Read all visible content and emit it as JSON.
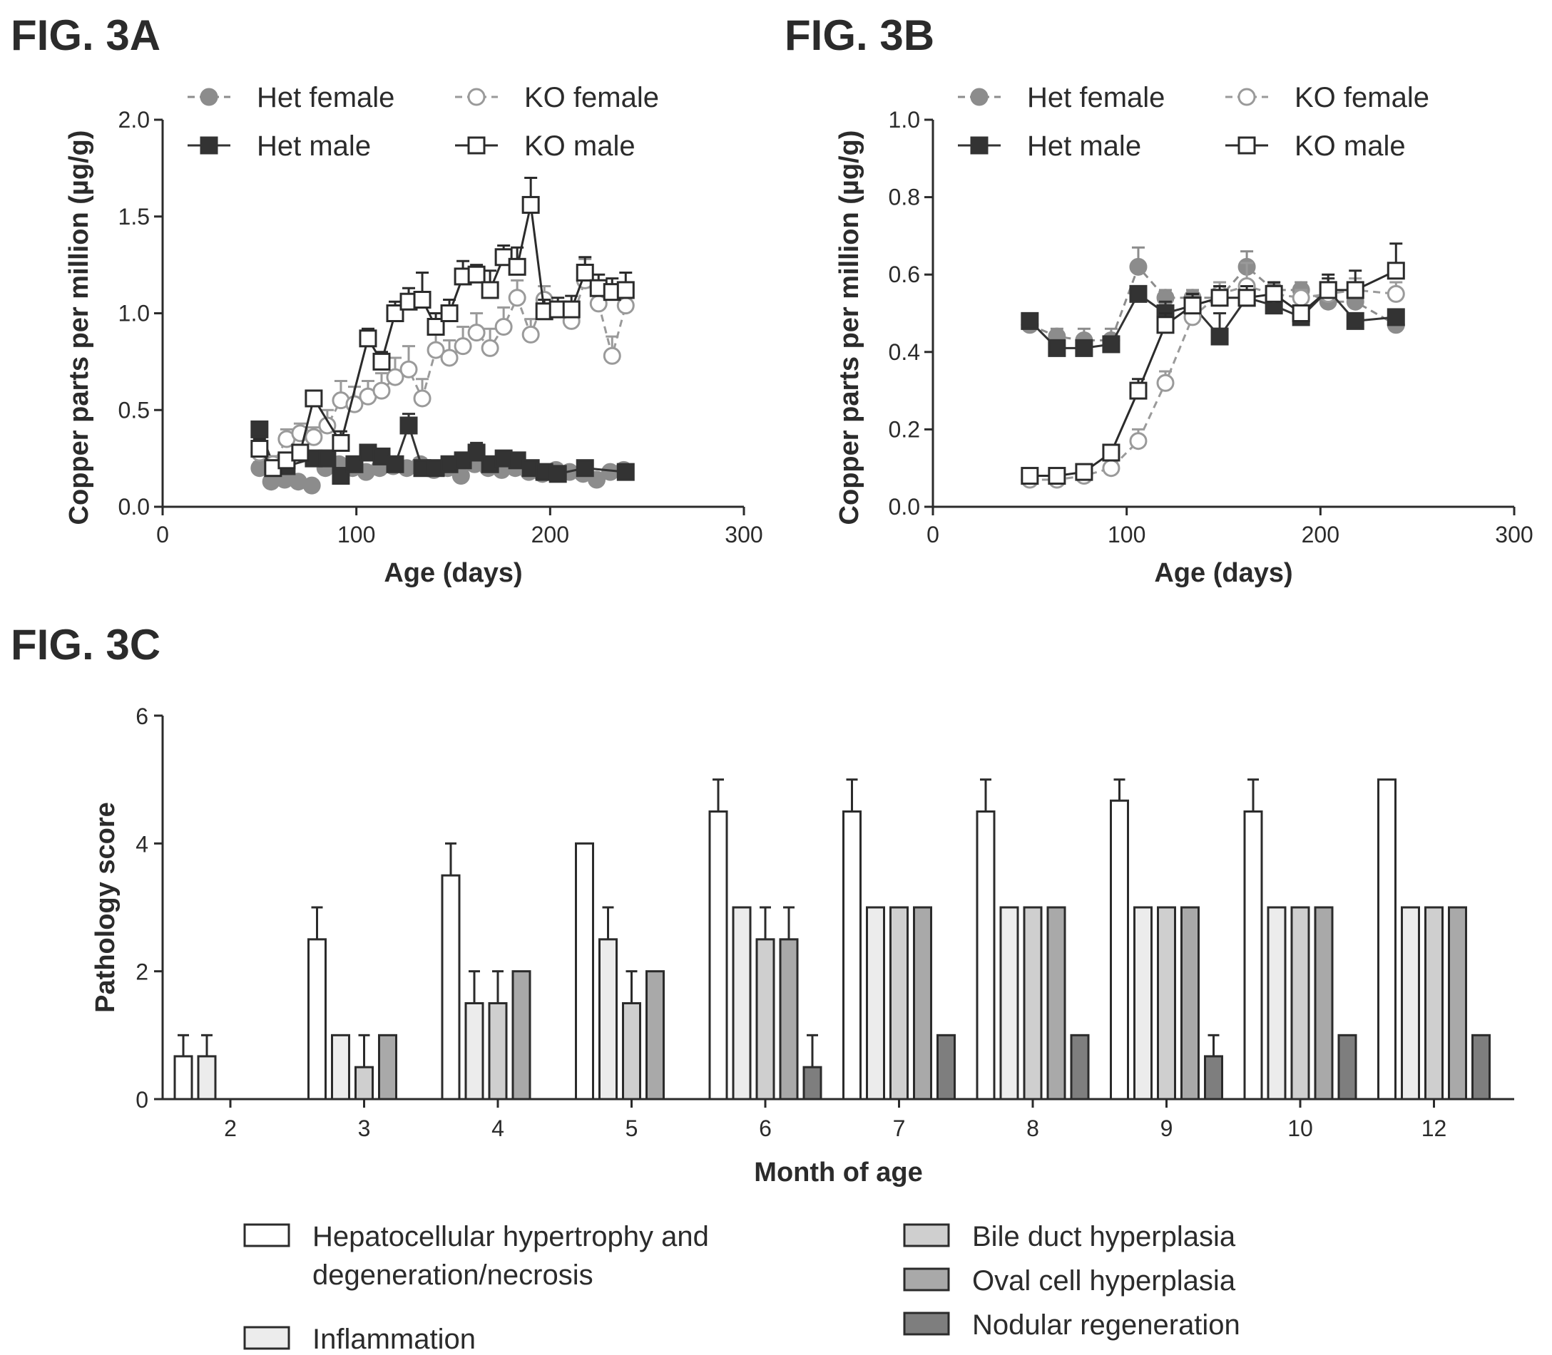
{
  "figures": {
    "a": {
      "title": "FIG. 3A"
    },
    "b": {
      "title": "FIG. 3B"
    },
    "c": {
      "title": "FIG. 3C"
    }
  },
  "colors": {
    "het_female": "#8c8c8c",
    "het_male": "#333333",
    "ko_female": "#9a9a9a",
    "ko_male": "#2b2b2b",
    "hypertrophy_fill": "#ffffff",
    "inflammation_fill": "#ececec",
    "bile_duct_fill": "#cfcfcf",
    "oval_cell_fill": "#a9a9a9",
    "nodular_fill": "#7e7e7e"
  },
  "chart_data": [
    {
      "id": "a",
      "type": "line",
      "title": "FIG. 3A",
      "xlabel": "Age (days)",
      "ylabel": "Copper parts per million (µg/g)",
      "xlim": [
        0,
        300
      ],
      "ylim": [
        0,
        2.0
      ],
      "xticks": [
        "0",
        "100",
        "200",
        "300"
      ],
      "yticks": [
        "0.0",
        "0.5",
        "1.0",
        "1.5",
        "2.0"
      ],
      "legend_position": "top",
      "series": [
        {
          "name": "Het female",
          "x": [
            50,
            56,
            63,
            70,
            77,
            84,
            91,
            98,
            105,
            112,
            119,
            126,
            133,
            140,
            147,
            154,
            161,
            168,
            175,
            182,
            189,
            196,
            203,
            210,
            217,
            224,
            231,
            238
          ],
          "y": [
            0.2,
            0.13,
            0.14,
            0.13,
            0.11,
            0.2,
            0.22,
            0.2,
            0.18,
            0.2,
            0.21,
            0.2,
            0.22,
            0.19,
            0.2,
            0.16,
            0.22,
            0.2,
            0.19,
            0.2,
            0.18,
            0.17,
            0.19,
            0.18,
            0.17,
            0.14,
            0.18,
            0.19
          ],
          "err": [
            0.03,
            0.02,
            0.02,
            0.02,
            0.02,
            0.03,
            0.03,
            0.03,
            0.02,
            0.03,
            0.03,
            0.03,
            0.03,
            0.03,
            0.03,
            0.02,
            0.03,
            0.03,
            0.03,
            0.03,
            0.02,
            0.02,
            0.03,
            0.02,
            0.02,
            0.02,
            0.02,
            0.02
          ]
        },
        {
          "name": "Het male",
          "x": [
            50,
            57,
            64,
            78,
            85,
            92,
            99,
            106,
            113,
            120,
            127,
            134,
            141,
            148,
            155,
            162,
            169,
            176,
            183,
            190,
            197,
            204,
            218,
            239
          ],
          "y": [
            0.4,
            0.22,
            0.21,
            0.25,
            0.25,
            0.16,
            0.22,
            0.28,
            0.26,
            0.22,
            0.42,
            0.2,
            0.2,
            0.22,
            0.24,
            0.28,
            0.22,
            0.25,
            0.24,
            0.2,
            0.18,
            0.17,
            0.2,
            0.18
          ],
          "err": [
            0.04,
            0.03,
            0.03,
            0.04,
            0.04,
            0.03,
            0.03,
            0.04,
            0.03,
            0.03,
            0.06,
            0.03,
            0.03,
            0.03,
            0.03,
            0.05,
            0.03,
            0.03,
            0.03,
            0.03,
            0.02,
            0.02,
            0.02,
            0.02
          ]
        },
        {
          "name": "KO female",
          "x": [
            50,
            57,
            64,
            71,
            78,
            85,
            92,
            99,
            106,
            113,
            120,
            127,
            134,
            141,
            148,
            155,
            162,
            169,
            176,
            183,
            190,
            197,
            211,
            218,
            225,
            232,
            239
          ],
          "y": [
            0.28,
            0.22,
            0.35,
            0.38,
            0.36,
            0.42,
            0.55,
            0.53,
            0.57,
            0.6,
            0.67,
            0.71,
            0.56,
            0.81,
            0.77,
            0.83,
            0.9,
            0.82,
            0.93,
            1.08,
            0.89,
            1.07,
            0.96,
            1.17,
            1.05,
            0.78,
            1.04
          ],
          "err": [
            0.04,
            0.04,
            0.05,
            0.05,
            0.05,
            0.08,
            0.1,
            0.09,
            0.08,
            0.09,
            0.1,
            0.12,
            0.1,
            0.1,
            0.09,
            0.1,
            0.1,
            0.1,
            0.1,
            0.09,
            0.08,
            0.07,
            0.07,
            0.11,
            0.12,
            0.1,
            0.09
          ]
        },
        {
          "name": "KO male",
          "x": [
            50,
            57,
            64,
            71,
            78,
            92,
            106,
            113,
            120,
            127,
            134,
            141,
            148,
            155,
            162,
            169,
            176,
            183,
            190,
            197,
            204,
            211,
            218,
            225,
            232,
            239
          ],
          "y": [
            0.3,
            0.2,
            0.24,
            0.28,
            0.56,
            0.33,
            0.87,
            0.75,
            1.0,
            1.06,
            1.07,
            0.93,
            1.0,
            1.19,
            1.2,
            1.12,
            1.29,
            1.24,
            1.56,
            1.01,
            1.02,
            1.02,
            1.21,
            1.13,
            1.11,
            1.12
          ],
          "err": [
            0.05,
            0.04,
            0.04,
            0.04,
            0.04,
            0.06,
            0.05,
            0.05,
            0.06,
            0.07,
            0.14,
            0.07,
            0.07,
            0.08,
            0.05,
            0.1,
            0.06,
            0.1,
            0.14,
            0.06,
            0.06,
            0.07,
            0.08,
            0.07,
            0.07,
            0.09
          ]
        }
      ]
    },
    {
      "id": "b",
      "type": "line",
      "title": "FIG. 3B",
      "xlabel": "Age (days)",
      "ylabel": "Copper parts per million (µg/g)",
      "xlim": [
        0,
        300
      ],
      "ylim": [
        0,
        1.0
      ],
      "xticks": [
        "0",
        "100",
        "200",
        "300"
      ],
      "yticks": [
        "0.0",
        "0.2",
        "0.4",
        "0.6",
        "0.8",
        "1.0"
      ],
      "legend_position": "top",
      "series": [
        {
          "name": "Het female",
          "x": [
            50,
            64,
            78,
            92,
            106,
            120,
            134,
            148,
            162,
            176,
            190,
            204,
            218,
            239
          ],
          "y": [
            0.47,
            0.44,
            0.43,
            0.43,
            0.62,
            0.54,
            0.54,
            0.54,
            0.62,
            0.56,
            0.56,
            0.53,
            0.53,
            0.47
          ],
          "err": [
            0.02,
            0.02,
            0.03,
            0.03,
            0.05,
            0.02,
            0.02,
            0.02,
            0.04,
            0.02,
            0.02,
            0.02,
            0.02,
            0.02
          ]
        },
        {
          "name": "Het male",
          "x": [
            50,
            64,
            78,
            92,
            106,
            120,
            134,
            148,
            162,
            176,
            190,
            204,
            218,
            239
          ],
          "y": [
            0.48,
            0.41,
            0.41,
            0.42,
            0.55,
            0.5,
            0.52,
            0.44,
            0.54,
            0.52,
            0.49,
            0.56,
            0.48,
            0.49
          ],
          "err": [
            0.02,
            0.02,
            0.02,
            0.02,
            0.02,
            0.03,
            0.03,
            0.06,
            0.03,
            0.02,
            0.02,
            0.03,
            0.02,
            0.02
          ]
        },
        {
          "name": "KO female",
          "x": [
            50,
            64,
            78,
            92,
            106,
            120,
            134,
            148,
            162,
            176,
            190,
            204,
            218,
            239
          ],
          "y": [
            0.07,
            0.07,
            0.08,
            0.1,
            0.17,
            0.32,
            0.49,
            0.55,
            0.57,
            0.55,
            0.54,
            0.55,
            0.56,
            0.55
          ],
          "err": [
            0.01,
            0.01,
            0.01,
            0.01,
            0.03,
            0.03,
            0.03,
            0.03,
            0.06,
            0.02,
            0.02,
            0.02,
            0.03,
            0.03
          ]
        },
        {
          "name": "KO male",
          "x": [
            50,
            64,
            78,
            92,
            106,
            120,
            134,
            148,
            162,
            176,
            190,
            204,
            218,
            239
          ],
          "y": [
            0.08,
            0.08,
            0.09,
            0.14,
            0.3,
            0.47,
            0.52,
            0.54,
            0.54,
            0.55,
            0.5,
            0.56,
            0.56,
            0.61
          ],
          "err": [
            0.01,
            0.01,
            0.01,
            0.02,
            0.03,
            0.03,
            0.03,
            0.03,
            0.03,
            0.03,
            0.02,
            0.04,
            0.05,
            0.07
          ]
        }
      ]
    },
    {
      "id": "c",
      "type": "bar",
      "title": "FIG. 3C",
      "xlabel": "Month of age",
      "ylabel": "Pathology score",
      "ylim": [
        0,
        6
      ],
      "yticks": [
        "0",
        "2",
        "4",
        "6"
      ],
      "categories": [
        "2",
        "3",
        "4",
        "5",
        "6",
        "7",
        "8",
        "9",
        "10",
        "12"
      ],
      "legend_position": "bottom",
      "series": [
        {
          "name": "Hepatocellular hypertrophy and degeneration/necrosis",
          "legend_lines": [
            "Hepatocellular hypertrophy and",
            "degeneration/necrosis"
          ],
          "values": [
            0.67,
            2.5,
            3.5,
            4.0,
            4.5,
            4.5,
            4.5,
            4.67,
            4.5,
            5.0
          ],
          "err": [
            0.33,
            0.5,
            0.5,
            0,
            0.5,
            0.5,
            0.5,
            0.33,
            0.5,
            0
          ]
        },
        {
          "name": "Inflammation",
          "legend_lines": [
            "Inflammation"
          ],
          "values": [
            0.67,
            1.0,
            1.5,
            2.5,
            3.0,
            3.0,
            3.0,
            3.0,
            3.0,
            3.0
          ],
          "err": [
            0.33,
            0,
            0.5,
            0.5,
            0,
            0,
            0,
            0,
            0,
            0
          ]
        },
        {
          "name": "Bile duct hyperplasia",
          "legend_lines": [
            "Bile duct hyperplasia"
          ],
          "values": [
            0,
            0.5,
            1.5,
            1.5,
            2.5,
            3.0,
            3.0,
            3.0,
            3.0,
            3.0
          ],
          "err": [
            0,
            0.5,
            0.5,
            0.5,
            0.5,
            0,
            0,
            0,
            0,
            0
          ]
        },
        {
          "name": "Oval cell hyperplasia",
          "legend_lines": [
            "Oval cell hyperplasia"
          ],
          "values": [
            0,
            1.0,
            2.0,
            2.0,
            2.5,
            3.0,
            3.0,
            3.0,
            3.0,
            3.0
          ],
          "err": [
            0,
            0,
            0,
            0,
            0.5,
            0,
            0,
            0,
            0,
            0
          ]
        },
        {
          "name": "Nodular regeneration",
          "legend_lines": [
            "Nodular regeneration"
          ],
          "values": [
            0,
            0,
            0,
            0,
            0.5,
            1.0,
            1.0,
            0.67,
            1.0,
            1.0
          ],
          "err": [
            0,
            0,
            0,
            0,
            0.5,
            0,
            0,
            0.33,
            0,
            0
          ]
        }
      ]
    }
  ]
}
